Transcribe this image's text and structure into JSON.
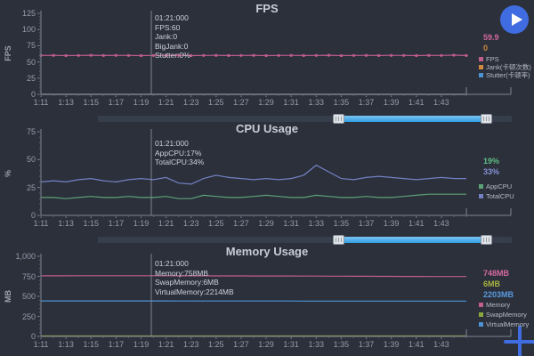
{
  "ui": {
    "play_button_icon": "play-icon",
    "add_button_icon": "plus-icon",
    "accent_blue": "#3f6ce0",
    "scrollbar_blue": "#2f9fe5"
  },
  "x_tick_labels": [
    "1:11",
    "1:13",
    "1:15",
    "1:17",
    "1:19",
    "1:21",
    "1:23",
    "1:25",
    "1:27",
    "1:29",
    "1:31",
    "1:33",
    "1:35",
    "1:37",
    "1:39",
    "1:41",
    "1:43"
  ],
  "chart_data": [
    {
      "type": "line",
      "title": "FPS",
      "ylabel": "FPS",
      "xlabel": "",
      "ylim": [
        0,
        125
      ],
      "yticks": [
        0,
        25,
        50,
        75,
        100,
        125
      ],
      "ytick_labels": [
        "0",
        "25",
        "50",
        "75",
        "100",
        "125"
      ],
      "legend_position": "right",
      "grid": false,
      "tooltip": {
        "lines": [
          "01:21:000",
          "FPS:60",
          "Jank:0",
          "BigJank:0",
          "Stutter:0%"
        ]
      },
      "current_values": [
        {
          "text": "59.9",
          "color": "#d4699f"
        },
        {
          "text": "0",
          "color": "#d08a3e"
        }
      ],
      "series": [
        {
          "name": "FPS",
          "color": "#c25d90",
          "markers": true,
          "values": [
            60,
            60.2,
            59.8,
            60,
            60.3,
            59.9,
            60.1,
            60,
            59.7,
            60,
            60,
            60.2,
            59.8,
            60,
            60.1,
            59.9,
            60,
            60.2,
            59.8,
            60,
            60.1,
            59.9,
            60,
            60.3,
            59.8,
            60,
            60.1,
            59.9,
            60.2,
            60,
            59.8,
            60.1,
            60,
            60.4,
            59.9
          ]
        },
        {
          "name": "Jank(卡顿次数)",
          "color": "#d08a3e",
          "markers": false,
          "values": [
            0,
            0,
            0,
            0,
            0,
            0,
            0,
            0,
            0,
            0,
            0,
            0,
            0,
            0,
            0,
            0,
            0,
            0,
            0,
            0,
            0,
            0,
            0,
            0,
            0,
            0,
            0,
            0,
            0,
            0,
            0,
            0,
            0,
            0,
            0
          ]
        },
        {
          "name": "Stutter(卡顿率)",
          "color": "#4e92d6",
          "markers": false,
          "values": [
            0,
            0,
            0,
            0,
            0,
            0,
            0,
            0,
            0,
            0,
            0,
            0,
            0,
            0,
            0,
            0,
            0,
            0,
            0,
            0,
            0,
            0,
            0,
            0,
            0,
            0,
            0,
            0,
            0,
            0,
            0,
            0,
            0,
            0,
            0
          ]
        }
      ]
    },
    {
      "type": "line",
      "title": "CPU Usage",
      "ylabel": "%",
      "xlabel": "",
      "ylim": [
        0,
        75
      ],
      "yticks": [
        0,
        25,
        50,
        75
      ],
      "ytick_labels": [
        "0",
        "25",
        "50",
        "75"
      ],
      "legend_position": "right",
      "grid": false,
      "tooltip": {
        "lines": [
          "01:21:000",
          "AppCPU:17%",
          "TotalCPU:34%"
        ]
      },
      "current_values": [
        {
          "text": "19%",
          "color": "#5fbd85"
        },
        {
          "text": "33%",
          "color": "#8691d6"
        }
      ],
      "series": [
        {
          "name": "AppCPU",
          "color": "#5ea277",
          "markers": false,
          "values": [
            16,
            16,
            15,
            16,
            17,
            16,
            16,
            17,
            16,
            16,
            17,
            15,
            15,
            18,
            17,
            16,
            16,
            17,
            18,
            17,
            16,
            16,
            18,
            17,
            16,
            16,
            17,
            16,
            16,
            17,
            18,
            19,
            19,
            19,
            19
          ]
        },
        {
          "name": "TotalCPU",
          "color": "#7381c2",
          "markers": false,
          "values": [
            30,
            31,
            30,
            32,
            33,
            31,
            30,
            32,
            33,
            32,
            34,
            29,
            28,
            33,
            36,
            34,
            33,
            32,
            33,
            32,
            33,
            36,
            45,
            39,
            33,
            32,
            34,
            35,
            34,
            33,
            32,
            33,
            34,
            33,
            33
          ]
        }
      ]
    },
    {
      "type": "line",
      "title": "Memory Usage",
      "ylabel": "MB",
      "xlabel": "",
      "ylim": [
        0,
        1000
      ],
      "yticks": [
        0,
        250,
        500,
        750,
        1000
      ],
      "ytick_labels": [
        "0",
        "250",
        "500",
        "750",
        "1,000"
      ],
      "legend_position": "right",
      "grid": false,
      "tooltip": {
        "lines": [
          "01:21:000",
          "Memory:758MB",
          "SwapMemory:6MB",
          "VirtualMemory:2214MB"
        ]
      },
      "current_values": [
        {
          "text": "748MB",
          "color": "#d4699f"
        },
        {
          "text": "6MB",
          "color": "#a9b23f"
        },
        {
          "text": "2203MB",
          "color": "#5a9ae0"
        }
      ],
      "series": [
        {
          "name": "Memory",
          "color": "#c25d90",
          "markers": false,
          "values": [
            757,
            757,
            757,
            758,
            758,
            758,
            758,
            758,
            758,
            758,
            758,
            757,
            757,
            757,
            756,
            756,
            756,
            755,
            755,
            754,
            754,
            753,
            753,
            752,
            752,
            751,
            751,
            750,
            750,
            749,
            749,
            748,
            748,
            748,
            748
          ]
        },
        {
          "name": "SwapMemory",
          "color": "#8aa83e",
          "markers": false,
          "values": [
            6,
            6,
            6,
            6,
            6,
            6,
            6,
            6,
            6,
            6,
            6,
            6,
            6,
            6,
            6,
            6,
            6,
            6,
            6,
            6,
            6,
            6,
            6,
            6,
            6,
            6,
            6,
            6,
            6,
            6,
            6,
            6,
            6,
            6,
            6
          ]
        },
        {
          "name": "VirtualMemory",
          "color": "#4e92d6",
          "markers": false,
          "display_divisor": 5,
          "values": [
            2214,
            2214,
            2214,
            2214,
            2214,
            2214,
            2214,
            2214,
            2214,
            2214,
            2214,
            2213,
            2213,
            2212,
            2212,
            2211,
            2211,
            2210,
            2210,
            2209,
            2209,
            2208,
            2208,
            2207,
            2207,
            2206,
            2206,
            2205,
            2205,
            2204,
            2204,
            2203,
            2203,
            2203,
            2203
          ]
        }
      ]
    }
  ]
}
